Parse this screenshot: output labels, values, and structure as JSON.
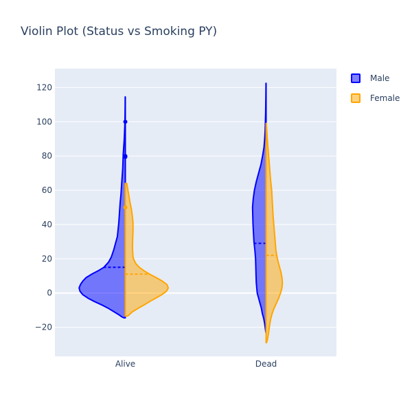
{
  "chart_data": {
    "type": "violin",
    "title": "Violin Plot (Status vs Smoking PY)",
    "xlabel": "",
    "ylabel": "",
    "categories": [
      "Alive",
      "Dead"
    ],
    "ylim": [
      -37,
      131
    ],
    "yticks": [
      -20,
      0,
      20,
      40,
      60,
      80,
      100,
      120
    ],
    "ytick_labels": [
      "−20",
      "0",
      "20",
      "40",
      "60",
      "80",
      "100",
      "120"
    ],
    "legend_position": "top-right",
    "colors": {
      "plot_background": "#e5ecf6",
      "grid": "#ffffff",
      "text": "#2a3f5f"
    },
    "series": [
      {
        "name": "Male",
        "side": "negative",
        "line_color": "#0000ff",
        "fill_color": "#0000ff",
        "fill_opacity": 0.5,
        "violins": [
          {
            "category": "Alive",
            "mean": 15,
            "profile": [
              [
                -14.5,
                0.03
              ],
              [
                -14,
                0.07
              ],
              [
                -13,
                0.12
              ],
              [
                -11,
                0.24
              ],
              [
                -9,
                0.36
              ],
              [
                -7,
                0.5
              ],
              [
                -5,
                0.66
              ],
              [
                -3,
                0.8
              ],
              [
                -1,
                0.91
              ],
              [
                1,
                0.97
              ],
              [
                3,
                0.99
              ],
              [
                5,
                0.96
              ],
              [
                7,
                0.91
              ],
              [
                9,
                0.84
              ],
              [
                11,
                0.72
              ],
              [
                13,
                0.58
              ],
              [
                15,
                0.46
              ],
              [
                18,
                0.36
              ],
              [
                21,
                0.3
              ],
              [
                25,
                0.25
              ],
              [
                29,
                0.21
              ],
              [
                33,
                0.17
              ],
              [
                37,
                0.155
              ],
              [
                41,
                0.14
              ],
              [
                45,
                0.13
              ],
              [
                49,
                0.12
              ],
              [
                53,
                0.11
              ],
              [
                57,
                0.095
              ],
              [
                61,
                0.085
              ],
              [
                65,
                0.075
              ],
              [
                69,
                0.065
              ],
              [
                73,
                0.055
              ],
              [
                77,
                0.05
              ],
              [
                81,
                0.045
              ],
              [
                85,
                0.035
              ],
              [
                89,
                0.025
              ],
              [
                93,
                0.018
              ],
              [
                97,
                0.012
              ],
              [
                101,
                0.008
              ],
              [
                105,
                0.006
              ],
              [
                109,
                0.004
              ],
              [
                114.5,
                0.003
              ]
            ],
            "outliers": [
              100,
              80,
              79.5
            ]
          },
          {
            "category": "Dead",
            "mean": 29,
            "profile": [
              [
                -23,
                0.005
              ],
              [
                -21,
                0.015
              ],
              [
                -18,
                0.03
              ],
              [
                -15,
                0.05
              ],
              [
                -12,
                0.08
              ],
              [
                -9,
                0.1
              ],
              [
                -6,
                0.13
              ],
              [
                -3,
                0.16
              ],
              [
                0,
                0.19
              ],
              [
                3,
                0.2
              ],
              [
                6,
                0.21
              ],
              [
                10,
                0.215
              ],
              [
                15,
                0.22
              ],
              [
                20,
                0.225
              ],
              [
                25,
                0.24
              ],
              [
                30,
                0.26
              ],
              [
                35,
                0.27
              ],
              [
                40,
                0.28
              ],
              [
                45,
                0.285
              ],
              [
                50,
                0.29
              ],
              [
                55,
                0.275
              ],
              [
                60,
                0.25
              ],
              [
                65,
                0.21
              ],
              [
                70,
                0.16
              ],
              [
                75,
                0.11
              ],
              [
                80,
                0.075
              ],
              [
                85,
                0.045
              ],
              [
                90,
                0.03
              ],
              [
                95,
                0.02
              ],
              [
                100,
                0.015
              ],
              [
                105,
                0.01
              ],
              [
                110,
                0.007
              ],
              [
                116,
                0.004
              ],
              [
                122.5,
                0.002
              ]
            ],
            "outliers": []
          }
        ]
      },
      {
        "name": "Female",
        "side": "positive",
        "line_color": "#ffa500",
        "fill_color": "#ffa500",
        "fill_opacity": 0.5,
        "violins": [
          {
            "category": "Alive",
            "mean": 11,
            "profile": [
              [
                -13.5,
                0.04
              ],
              [
                -13,
                0.07
              ],
              [
                -11,
                0.15
              ],
              [
                -9,
                0.27
              ],
              [
                -7,
                0.4
              ],
              [
                -5,
                0.52
              ],
              [
                -3,
                0.65
              ],
              [
                -1,
                0.78
              ],
              [
                1,
                0.88
              ],
              [
                3,
                0.92
              ],
              [
                5,
                0.89
              ],
              [
                7,
                0.79
              ],
              [
                9,
                0.66
              ],
              [
                11,
                0.52
              ],
              [
                13,
                0.4
              ],
              [
                15,
                0.3
              ],
              [
                17,
                0.23
              ],
              [
                19,
                0.19
              ],
              [
                21,
                0.165
              ],
              [
                25,
                0.155
              ],
              [
                29,
                0.155
              ],
              [
                33,
                0.16
              ],
              [
                37,
                0.165
              ],
              [
                41,
                0.165
              ],
              [
                45,
                0.15
              ],
              [
                49,
                0.13
              ],
              [
                53,
                0.1
              ],
              [
                57,
                0.075
              ],
              [
                61,
                0.05
              ],
              [
                64,
                0.03
              ]
            ],
            "outliers": [
              50
            ]
          },
          {
            "category": "Dead",
            "mean": 22,
            "profile": [
              [
                -29,
                0.01
              ],
              [
                -27,
                0.03
              ],
              [
                -24,
                0.05
              ],
              [
                -21,
                0.065
              ],
              [
                -18,
                0.08
              ],
              [
                -15,
                0.1
              ],
              [
                -12,
                0.13
              ],
              [
                -9,
                0.17
              ],
              [
                -6,
                0.22
              ],
              [
                -3,
                0.27
              ],
              [
                0,
                0.31
              ],
              [
                3,
                0.34
              ],
              [
                6,
                0.35
              ],
              [
                9,
                0.34
              ],
              [
                12,
                0.32
              ],
              [
                15,
                0.29
              ],
              [
                18,
                0.26
              ],
              [
                21,
                0.235
              ],
              [
                25,
                0.21
              ],
              [
                30,
                0.195
              ],
              [
                35,
                0.18
              ],
              [
                40,
                0.165
              ],
              [
                45,
                0.15
              ],
              [
                50,
                0.14
              ],
              [
                55,
                0.13
              ],
              [
                60,
                0.12
              ],
              [
                65,
                0.1
              ],
              [
                70,
                0.085
              ],
              [
                75,
                0.07
              ],
              [
                80,
                0.055
              ],
              [
                85,
                0.04
              ],
              [
                90,
                0.025
              ],
              [
                95,
                0.015
              ],
              [
                99,
                0.005
              ]
            ],
            "outliers": []
          }
        ]
      }
    ]
  }
}
